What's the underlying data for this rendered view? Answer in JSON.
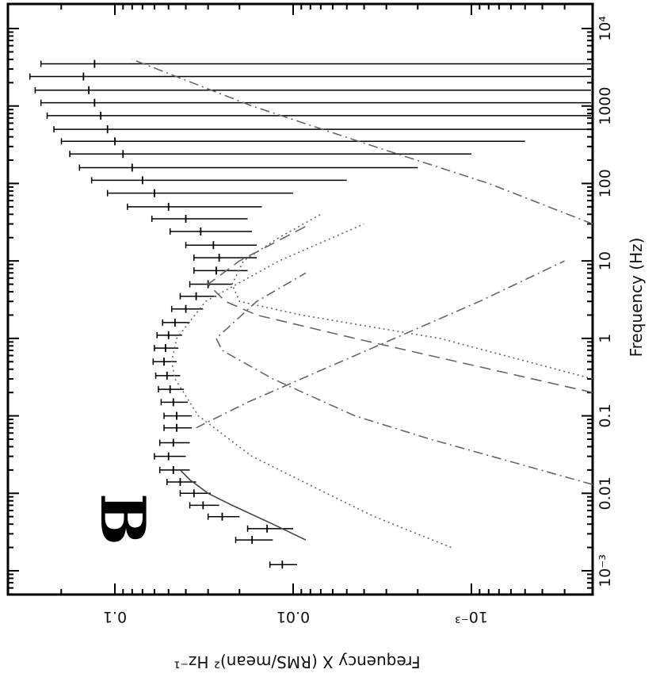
{
  "chart_data": {
    "type": "scatter",
    "orientation": "rotated-90-clockwise",
    "panel_label": "B",
    "xlabel": "Frequency (Hz)",
    "ylabel": "Frequency X (RMS/mean)² Hz⁻¹",
    "xscale": "log",
    "yscale": "log",
    "xlim": [
      0.0005,
      10000
    ],
    "ylim": [
      0.0002,
      0.3
    ],
    "x_tick_labels": [
      {
        "value": 0.001,
        "label": "10⁻³"
      },
      {
        "value": 0.01,
        "label": "0.01"
      },
      {
        "value": 0.1,
        "label": "0.1"
      },
      {
        "value": 1,
        "label": "1"
      },
      {
        "value": 10,
        "label": "10"
      },
      {
        "value": 100,
        "label": "100"
      },
      {
        "value": 1000,
        "label": "1000"
      },
      {
        "value": 10000,
        "label": "10⁴"
      }
    ],
    "y_tick_labels": [
      {
        "value": 0.001,
        "label": "10⁻³"
      },
      {
        "value": 0.01,
        "label": "0.01"
      },
      {
        "value": 0.1,
        "label": "0.1"
      }
    ],
    "grid": false,
    "legend": "none",
    "series": [
      {
        "kind": "data-with-errorbars",
        "points": [
          {
            "x": 0.0012,
            "y": 0.0115,
            "yerr": 0.002
          },
          {
            "x": 0.0025,
            "y": 0.017,
            "yerr": 0.004
          },
          {
            "x": 0.0035,
            "y": 0.014,
            "yerr": 0.004
          },
          {
            "x": 0.005,
            "y": 0.025,
            "yerr": 0.005
          },
          {
            "x": 0.007,
            "y": 0.032,
            "yerr": 0.006
          },
          {
            "x": 0.01,
            "y": 0.036,
            "yerr": 0.007
          },
          {
            "x": 0.014,
            "y": 0.043,
            "yerr": 0.008
          },
          {
            "x": 0.02,
            "y": 0.047,
            "yerr": 0.009
          },
          {
            "x": 0.03,
            "y": 0.05,
            "yerr": 0.01
          },
          {
            "x": 0.045,
            "y": 0.047,
            "yerr": 0.009
          },
          {
            "x": 0.07,
            "y": 0.045,
            "yerr": 0.008
          },
          {
            "x": 0.1,
            "y": 0.045,
            "yerr": 0.008
          },
          {
            "x": 0.15,
            "y": 0.047,
            "yerr": 0.008
          },
          {
            "x": 0.22,
            "y": 0.049,
            "yerr": 0.008
          },
          {
            "x": 0.33,
            "y": 0.051,
            "yerr": 0.008
          },
          {
            "x": 0.5,
            "y": 0.053,
            "yerr": 0.008
          },
          {
            "x": 0.75,
            "y": 0.052,
            "yerr": 0.008
          },
          {
            "x": 1.1,
            "y": 0.05,
            "yerr": 0.008
          },
          {
            "x": 1.6,
            "y": 0.046,
            "yerr": 0.008
          },
          {
            "x": 2.4,
            "y": 0.04,
            "yerr": 0.008
          },
          {
            "x": 3.5,
            "y": 0.035,
            "yerr": 0.008
          },
          {
            "x": 5,
            "y": 0.03,
            "yerr": 0.008
          },
          {
            "x": 7.5,
            "y": 0.027,
            "yerr": 0.009
          },
          {
            "x": 11,
            "y": 0.026,
            "yerr": 0.01
          },
          {
            "x": 16,
            "y": 0.028,
            "yerr": 0.012
          },
          {
            "x": 24,
            "y": 0.033,
            "yerr": 0.016
          },
          {
            "x": 35,
            "y": 0.04,
            "yerr": 0.022
          },
          {
            "x": 50,
            "y": 0.05,
            "yerr": 0.035
          },
          {
            "x": 75,
            "y": 0.06,
            "yerr": 0.05
          },
          {
            "x": 110,
            "y": 0.07,
            "yerr": 0.065
          },
          {
            "x": 160,
            "y": 0.08,
            "yerr": 0.078
          },
          {
            "x": 240,
            "y": 0.09,
            "yerr": 0.089
          },
          {
            "x": 350,
            "y": 0.1,
            "yerr": 0.0995
          },
          {
            "x": 500,
            "y": 0.11,
            "yerr": 0.1098
          },
          {
            "x": 750,
            "y": 0.12,
            "yerr": 0.1199
          },
          {
            "x": 1100,
            "y": 0.13,
            "yerr": 0.1299
          },
          {
            "x": 1600,
            "y": 0.14,
            "yerr": 0.1399
          },
          {
            "x": 2400,
            "y": 0.15,
            "yerr": 0.1499
          },
          {
            "x": 3500,
            "y": 0.13,
            "yerr": 0.1299
          }
        ]
      },
      {
        "kind": "total-model",
        "style": "solid",
        "x": [
          0.0025,
          0.004,
          0.007,
          0.01,
          0.015,
          0.02
        ],
        "y": [
          0.0085,
          0.013,
          0.022,
          0.03,
          0.038,
          0.043
        ]
      },
      {
        "kind": "component",
        "style": "dotted",
        "x": [
          0.002,
          0.005,
          0.01,
          0.03,
          0.1,
          0.3,
          0.5,
          1,
          3,
          10,
          30
        ],
        "y": [
          0.0013,
          0.0035,
          0.0065,
          0.017,
          0.034,
          0.046,
          0.048,
          0.045,
          0.031,
          0.012,
          0.004
        ]
      },
      {
        "kind": "component",
        "style": "dotted",
        "x": [
          0.3,
          1,
          2,
          3,
          5,
          10,
          20,
          40
        ],
        "y": [
          0.0002,
          0.0015,
          0.009,
          0.02,
          0.022,
          0.019,
          0.012,
          0.007
        ]
      },
      {
        "kind": "component",
        "style": "dash-dot",
        "x": [
          0.013,
          0.05,
          0.1,
          0.3,
          0.7,
          1,
          3,
          7
        ],
        "y": [
          0.0002,
          0.0017,
          0.0045,
          0.013,
          0.025,
          0.027,
          0.016,
          0.0085
        ]
      },
      {
        "kind": "component",
        "style": "dashed",
        "x": [
          0.2,
          0.5,
          1,
          2,
          3,
          5,
          10,
          30
        ],
        "y": [
          0.0002,
          0.0012,
          0.0045,
          0.016,
          0.024,
          0.03,
          0.02,
          0.008
        ]
      },
      {
        "kind": "component",
        "style": "dash-dot",
        "x": [
          0.07,
          0.15,
          0.3,
          1,
          3,
          10
        ],
        "y": [
          0.035,
          0.018,
          0.009,
          0.0027,
          0.0009,
          0.0003
        ]
      },
      {
        "kind": "component",
        "style": "dash-dot",
        "x": [
          30,
          100,
          300,
          1000,
          4000
        ],
        "y": [
          0.0002,
          0.0008,
          0.0035,
          0.017,
          0.08
        ]
      }
    ]
  }
}
